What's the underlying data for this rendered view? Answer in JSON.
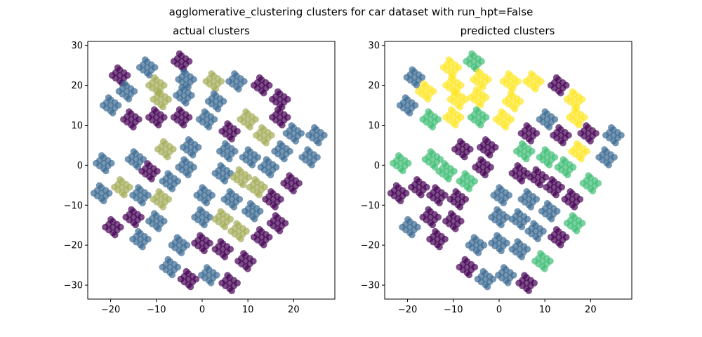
{
  "figure": {
    "suptitle": "agglomerative_clustering clusters for car dataset with run_hpt=False"
  },
  "colors": {
    "purple": "#440154",
    "blue": "#3b6a92",
    "teal": "#21918c",
    "green": "#3fbe75",
    "yellow": "#fde725",
    "olive": "#a4ad58"
  },
  "chart_data": [
    {
      "type": "scatter",
      "title": "actual clusters",
      "xlim": [
        -25,
        29
      ],
      "ylim": [
        -33.5,
        31
      ],
      "xticks": [
        -20,
        -10,
        0,
        10,
        20
      ],
      "yticks": [
        -30,
        -20,
        -10,
        0,
        10,
        20,
        30
      ],
      "xtick_labels": [
        "−20",
        "−10",
        "0",
        "10",
        "20"
      ],
      "ytick_labels": [
        "−30",
        "−20",
        "−10",
        "0",
        "10",
        "20",
        "30"
      ],
      "clusters": [
        {
          "x": -4.5,
          "y": 26.0,
          "color": "purple"
        },
        {
          "x": -12.0,
          "y": 24.5,
          "color": "blue"
        },
        {
          "x": -18.0,
          "y": 22.5,
          "color": "purple"
        },
        {
          "x": -3.5,
          "y": 21.5,
          "color": "blue"
        },
        {
          "x": 2.5,
          "y": 21.0,
          "color": "olive"
        },
        {
          "x": 7.5,
          "y": 21.0,
          "color": "blue"
        },
        {
          "x": -10.0,
          "y": 20.0,
          "color": "olive"
        },
        {
          "x": 13.0,
          "y": 20.0,
          "color": "purple"
        },
        {
          "x": -16.5,
          "y": 18.5,
          "color": "blue"
        },
        {
          "x": -4.0,
          "y": 17.5,
          "color": "blue"
        },
        {
          "x": -9.0,
          "y": 16.5,
          "color": "olive"
        },
        {
          "x": 3.0,
          "y": 16.0,
          "color": "blue"
        },
        {
          "x": 17.0,
          "y": 16.5,
          "color": "purple"
        },
        {
          "x": -20.0,
          "y": 15.0,
          "color": "blue"
        },
        {
          "x": -15.5,
          "y": 11.5,
          "color": "purple"
        },
        {
          "x": -10.0,
          "y": 12.0,
          "color": "purple"
        },
        {
          "x": -4.5,
          "y": 12.0,
          "color": "purple"
        },
        {
          "x": 1.0,
          "y": 11.5,
          "color": "blue"
        },
        {
          "x": 10.0,
          "y": 11.5,
          "color": "olive"
        },
        {
          "x": 17.0,
          "y": 12.0,
          "color": "purple"
        },
        {
          "x": 6.0,
          "y": 8.5,
          "color": "purple"
        },
        {
          "x": 13.5,
          "y": 7.5,
          "color": "olive"
        },
        {
          "x": 20.0,
          "y": 8.0,
          "color": "blue"
        },
        {
          "x": 25.0,
          "y": 7.5,
          "color": "blue"
        },
        {
          "x": -8.0,
          "y": 4.0,
          "color": "olive"
        },
        {
          "x": -2.5,
          "y": 4.5,
          "color": "blue"
        },
        {
          "x": 5.5,
          "y": 3.5,
          "color": "blue"
        },
        {
          "x": 17.5,
          "y": 3.5,
          "color": "blue"
        },
        {
          "x": -14.5,
          "y": 1.5,
          "color": "blue"
        },
        {
          "x": 10.5,
          "y": 2.0,
          "color": "blue"
        },
        {
          "x": 23.5,
          "y": 2.0,
          "color": "blue"
        },
        {
          "x": -21.5,
          "y": 0.5,
          "color": "blue"
        },
        {
          "x": -3.5,
          "y": -0.5,
          "color": "blue"
        },
        {
          "x": 14.5,
          "y": -0.5,
          "color": "blue"
        },
        {
          "x": -11.5,
          "y": -1.5,
          "color": "purple"
        },
        {
          "x": 4.5,
          "y": -2.0,
          "color": "blue"
        },
        {
          "x": 8.5,
          "y": -3.0,
          "color": "olive"
        },
        {
          "x": -7.0,
          "y": -4.0,
          "color": "blue"
        },
        {
          "x": 19.5,
          "y": -4.5,
          "color": "purple"
        },
        {
          "x": -17.5,
          "y": -5.5,
          "color": "olive"
        },
        {
          "x": 12.0,
          "y": -5.5,
          "color": "olive"
        },
        {
          "x": -22.0,
          "y": -7.0,
          "color": "blue"
        },
        {
          "x": -13.5,
          "y": -7.5,
          "color": "blue"
        },
        {
          "x": 0.5,
          "y": -7.5,
          "color": "blue"
        },
        {
          "x": 6.5,
          "y": -8.5,
          "color": "blue"
        },
        {
          "x": -9.0,
          "y": -8.5,
          "color": "olive"
        },
        {
          "x": 15.5,
          "y": -8.5,
          "color": "purple"
        },
        {
          "x": 11.0,
          "y": -11.5,
          "color": "blue"
        },
        {
          "x": -15.0,
          "y": -13.0,
          "color": "purple"
        },
        {
          "x": 0.0,
          "y": -13.0,
          "color": "blue"
        },
        {
          "x": 4.5,
          "y": -13.5,
          "color": "olive"
        },
        {
          "x": -10.0,
          "y": -14.0,
          "color": "blue"
        },
        {
          "x": 16.5,
          "y": -14.5,
          "color": "purple"
        },
        {
          "x": -19.5,
          "y": -15.5,
          "color": "purple"
        },
        {
          "x": 8.0,
          "y": -16.5,
          "color": "olive"
        },
        {
          "x": -13.5,
          "y": -18.5,
          "color": "blue"
        },
        {
          "x": 13.0,
          "y": -18.0,
          "color": "purple"
        },
        {
          "x": -5.0,
          "y": -20.0,
          "color": "blue"
        },
        {
          "x": 0.0,
          "y": -19.5,
          "color": "purple"
        },
        {
          "x": 4.5,
          "y": -21.0,
          "color": "purple"
        },
        {
          "x": 9.5,
          "y": -24.0,
          "color": "purple"
        },
        {
          "x": -7.0,
          "y": -25.5,
          "color": "blue"
        },
        {
          "x": -3.0,
          "y": -28.5,
          "color": "purple"
        },
        {
          "x": 1.5,
          "y": -27.5,
          "color": "blue"
        },
        {
          "x": 6.0,
          "y": -29.5,
          "color": "purple"
        }
      ]
    },
    {
      "type": "scatter",
      "title": "predicted clusters",
      "xlim": [
        -25,
        29
      ],
      "ylim": [
        -33.5,
        31
      ],
      "xticks": [
        -20,
        -10,
        0,
        10,
        20
      ],
      "yticks": [
        -30,
        -20,
        -10,
        0,
        10,
        20,
        30
      ],
      "xtick_labels": [
        "−20",
        "−10",
        "0",
        "10",
        "20"
      ],
      "ytick_labels": [
        "−30",
        "−20",
        "−10",
        "0",
        "10",
        "20",
        "30"
      ],
      "clusters": [
        {
          "x": -5.5,
          "y": 26.0,
          "color": "green"
        },
        {
          "x": -10.5,
          "y": 24.5,
          "color": "yellow"
        },
        {
          "x": -18.5,
          "y": 22.0,
          "color": "blue"
        },
        {
          "x": -4.0,
          "y": 21.5,
          "color": "yellow"
        },
        {
          "x": 2.5,
          "y": 21.0,
          "color": "yellow"
        },
        {
          "x": 7.5,
          "y": 21.0,
          "color": "yellow"
        },
        {
          "x": -10.0,
          "y": 20.0,
          "color": "yellow"
        },
        {
          "x": 13.0,
          "y": 20.0,
          "color": "purple"
        },
        {
          "x": -16.0,
          "y": 18.5,
          "color": "yellow"
        },
        {
          "x": -4.5,
          "y": 17.0,
          "color": "yellow"
        },
        {
          "x": -9.0,
          "y": 16.5,
          "color": "yellow"
        },
        {
          "x": 3.0,
          "y": 16.0,
          "color": "yellow"
        },
        {
          "x": 16.5,
          "y": 16.5,
          "color": "yellow"
        },
        {
          "x": -20.0,
          "y": 15.0,
          "color": "blue"
        },
        {
          "x": -15.0,
          "y": 11.5,
          "color": "green"
        },
        {
          "x": -10.0,
          "y": 12.0,
          "color": "yellow"
        },
        {
          "x": -4.5,
          "y": 12.0,
          "color": "green"
        },
        {
          "x": 1.0,
          "y": 11.5,
          "color": "yellow"
        },
        {
          "x": 10.5,
          "y": 11.5,
          "color": "blue"
        },
        {
          "x": 17.0,
          "y": 12.0,
          "color": "yellow"
        },
        {
          "x": 6.5,
          "y": 8.0,
          "color": "purple"
        },
        {
          "x": 13.5,
          "y": 7.5,
          "color": "purple"
        },
        {
          "x": 19.5,
          "y": 8.0,
          "color": "purple"
        },
        {
          "x": 25.0,
          "y": 7.5,
          "color": "blue"
        },
        {
          "x": -8.0,
          "y": 4.0,
          "color": "purple"
        },
        {
          "x": -2.5,
          "y": 4.5,
          "color": "purple"
        },
        {
          "x": 5.5,
          "y": 3.5,
          "color": "green"
        },
        {
          "x": 17.5,
          "y": 3.5,
          "color": "yellow"
        },
        {
          "x": -14.5,
          "y": 1.5,
          "color": "green"
        },
        {
          "x": 10.5,
          "y": 2.0,
          "color": "green"
        },
        {
          "x": 23.5,
          "y": 2.0,
          "color": "blue"
        },
        {
          "x": -21.5,
          "y": 0.5,
          "color": "green"
        },
        {
          "x": -3.5,
          "y": -0.5,
          "color": "purple"
        },
        {
          "x": 14.5,
          "y": -0.5,
          "color": "green"
        },
        {
          "x": -11.5,
          "y": -1.5,
          "color": "green"
        },
        {
          "x": 4.5,
          "y": -2.0,
          "color": "purple"
        },
        {
          "x": 8.5,
          "y": -3.0,
          "color": "purple"
        },
        {
          "x": -7.0,
          "y": -4.0,
          "color": "green"
        },
        {
          "x": 20.0,
          "y": -4.5,
          "color": "green"
        },
        {
          "x": -17.5,
          "y": -5.5,
          "color": "purple"
        },
        {
          "x": 12.0,
          "y": -5.5,
          "color": "purple"
        },
        {
          "x": -22.0,
          "y": -7.0,
          "color": "purple"
        },
        {
          "x": -13.5,
          "y": -7.5,
          "color": "purple"
        },
        {
          "x": 0.5,
          "y": -7.5,
          "color": "blue"
        },
        {
          "x": 6.5,
          "y": -8.5,
          "color": "blue"
        },
        {
          "x": -9.0,
          "y": -8.5,
          "color": "purple"
        },
        {
          "x": 16.0,
          "y": -8.5,
          "color": "purple"
        },
        {
          "x": 11.0,
          "y": -11.5,
          "color": "blue"
        },
        {
          "x": -15.0,
          "y": -13.0,
          "color": "purple"
        },
        {
          "x": 0.0,
          "y": -13.0,
          "color": "blue"
        },
        {
          "x": 4.5,
          "y": -13.5,
          "color": "blue"
        },
        {
          "x": -10.0,
          "y": -14.0,
          "color": "purple"
        },
        {
          "x": 16.5,
          "y": -14.5,
          "color": "green"
        },
        {
          "x": -19.5,
          "y": -15.5,
          "color": "blue"
        },
        {
          "x": 8.0,
          "y": -16.5,
          "color": "blue"
        },
        {
          "x": -13.5,
          "y": -18.5,
          "color": "purple"
        },
        {
          "x": 13.0,
          "y": -18.0,
          "color": "purple"
        },
        {
          "x": -5.0,
          "y": -20.0,
          "color": "blue"
        },
        {
          "x": 0.0,
          "y": -19.5,
          "color": "blue"
        },
        {
          "x": 4.5,
          "y": -21.0,
          "color": "blue"
        },
        {
          "x": 9.5,
          "y": -24.0,
          "color": "green"
        },
        {
          "x": -7.0,
          "y": -25.5,
          "color": "purple"
        },
        {
          "x": -3.0,
          "y": -28.5,
          "color": "blue"
        },
        {
          "x": 1.5,
          "y": -27.5,
          "color": "blue"
        },
        {
          "x": 6.0,
          "y": -29.5,
          "color": "purple"
        }
      ]
    }
  ]
}
